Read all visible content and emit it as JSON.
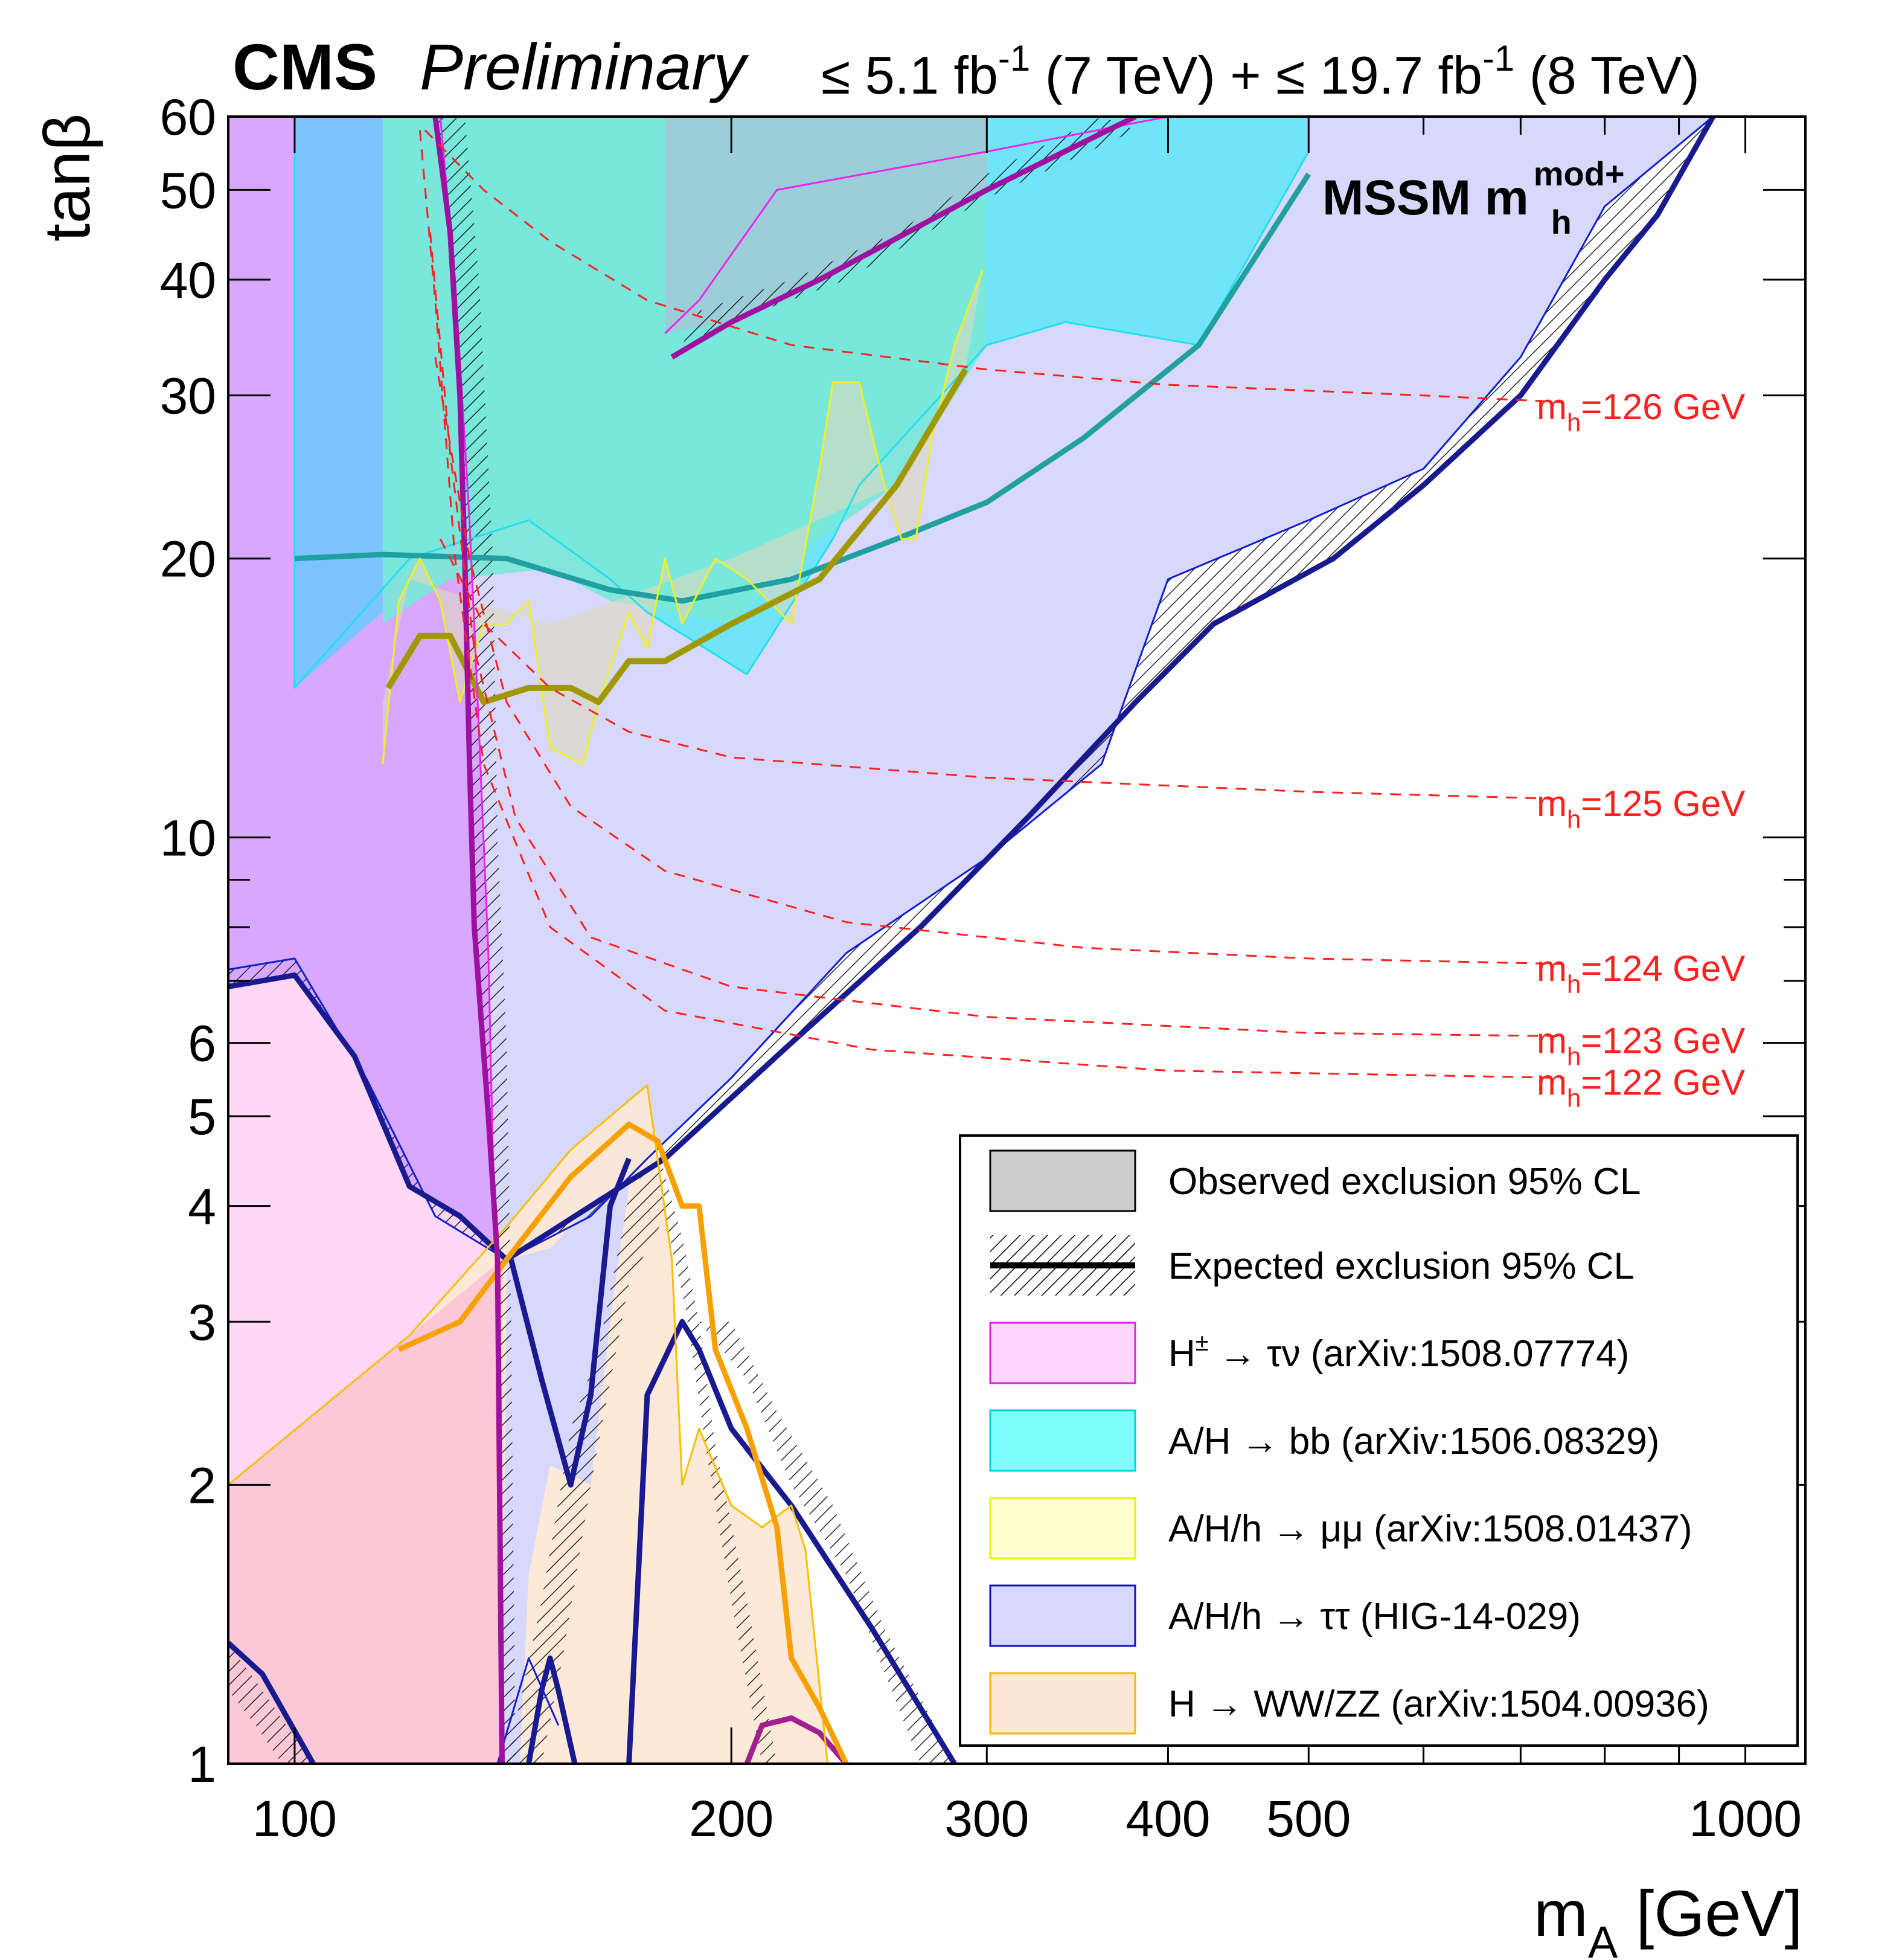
{
  "chart_data": {
    "type": "area",
    "header": {
      "cms": "CMS",
      "preliminary": "Preliminary",
      "lumi7_pre": "≤ 5.1 fb",
      "lumi7_exp": "-1",
      "lumi7_post": " (7 TeV) + ",
      "lumi8_pre": "≤ 19.7 fb",
      "lumi8_exp": "-1",
      "lumi8_post": " (8 TeV)"
    },
    "model_label": {
      "main": "MSSM m",
      "sup": "mod+",
      "sub": "h"
    },
    "xlabel": {
      "main": "m",
      "sub": "A",
      "rest": " [GeV]"
    },
    "ylabel": "tanβ",
    "xscale": "log",
    "yscale": "log",
    "xlim": [
      90,
      1100
    ],
    "ylim": [
      1,
      60
    ],
    "xtick_labels": [
      {
        "v": 100,
        "label": "100"
      },
      {
        "v": 200,
        "label": "200"
      },
      {
        "v": 300,
        "label": "300"
      },
      {
        "v": 400,
        "label": "400"
      },
      {
        "v": 500,
        "label": "500"
      },
      {
        "v": 1000,
        "label": "1000"
      }
    ],
    "ytick_labels": [
      {
        "v": 1,
        "label": "1"
      },
      {
        "v": 2,
        "label": "2"
      },
      {
        "v": 3,
        "label": "3"
      },
      {
        "v": 4,
        "label": "4"
      },
      {
        "v": 5,
        "label": "5"
      },
      {
        "v": 6,
        "label": "6"
      },
      {
        "v": 10,
        "label": "10"
      },
      {
        "v": 20,
        "label": "20"
      },
      {
        "v": 30,
        "label": "30"
      },
      {
        "v": 40,
        "label": "40"
      },
      {
        "v": 50,
        "label": "50"
      },
      {
        "v": 60,
        "label": "60"
      }
    ],
    "grid": false,
    "legend_position": "bottom-right",
    "legend": [
      {
        "key": "observed",
        "text": "Observed exclusion 95% CL",
        "fill": "#cccccc",
        "stroke": "#000000"
      },
      {
        "key": "expected",
        "text": "Expected exclusion 95% CL",
        "fill": "none",
        "stroke": "#000000"
      },
      {
        "key": "hpm",
        "pre": "H",
        "sup": "±",
        "post": " → τν (arXiv:1508.07774)",
        "fill": "#ffd6ff",
        "stroke": "#e020e0"
      },
      {
        "key": "bb",
        "text": "A/H → bb (arXiv:1506.08329)",
        "fill": "#80ffff",
        "stroke": "#00d0e0"
      },
      {
        "key": "mumu",
        "text": "A/H/h → μμ (arXiv:1508.01437)",
        "fill": "#ffffd0",
        "stroke": "#f0f000"
      },
      {
        "key": "tautau",
        "text": "A/H/h → ττ (HIG-14-029)",
        "fill": "#d8d8ff",
        "stroke": "#1010c0"
      },
      {
        "key": "wwzz",
        "text": "H → WW/ZZ (arXiv:1504.00936)",
        "fill": "#fde8d5",
        "stroke": "#f8b800"
      }
    ],
    "colors": {
      "hpm": "#d8a8ff",
      "hpm_line": "#ee22ee",
      "hpm_exp": "#a010a0",
      "bb": "#5ee8f8",
      "bb_line": "#20e0f0",
      "bb_exp": "#20a0a0",
      "mumu_line": "#f0f020",
      "mumu_exp": "#a09800",
      "tautau": "#d8d8fc",
      "tautau_line": "#1020d0",
      "tautau_exp": "#1a1a90",
      "wwzz": "#fde8d5",
      "wwzz_line": "#f8c000",
      "wwzz_exp": "#f8a000",
      "hlow": "#ffd6f8",
      "mh_lines": "#ff2020"
    },
    "mh_contours": [
      {
        "label": "=126 GeV",
        "mh": 126,
        "points": [
          [
            123,
            58
          ],
          [
            135,
            50
          ],
          [
            150,
            44
          ],
          [
            175,
            38
          ],
          [
            220,
            34
          ],
          [
            300,
            32
          ],
          [
            400,
            30.8
          ],
          [
            600,
            30
          ],
          [
            750,
            29.5
          ]
        ]
      },
      {
        "label": "=125 GeV",
        "mh": 125,
        "points": [
          [
            126,
            21
          ],
          [
            135,
            17
          ],
          [
            150,
            14.5
          ],
          [
            170,
            13
          ],
          [
            200,
            12.2
          ],
          [
            300,
            11.6
          ],
          [
            500,
            11.2
          ],
          [
            750,
            11
          ]
        ]
      },
      {
        "label": "=124 GeV",
        "mh": 124,
        "points": [
          [
            125,
            33
          ],
          [
            132,
            20
          ],
          [
            140,
            14
          ],
          [
            155,
            10.8
          ],
          [
            180,
            9.2
          ],
          [
            240,
            8.1
          ],
          [
            350,
            7.6
          ],
          [
            500,
            7.4
          ],
          [
            750,
            7.3
          ]
        ]
      },
      {
        "label": "=123 GeV",
        "mh": 123,
        "points": [
          [
            124,
            45
          ],
          [
            128,
            26
          ],
          [
            133,
            16
          ],
          [
            142,
            10.5
          ],
          [
            160,
            7.8
          ],
          [
            200,
            6.9
          ],
          [
            300,
            6.4
          ],
          [
            500,
            6.15
          ],
          [
            750,
            6.1
          ]
        ]
      },
      {
        "label": "=122 GeV",
        "mh": 122,
        "points": [
          [
            122,
            58
          ],
          [
            125,
            38
          ],
          [
            129,
            20
          ],
          [
            135,
            12
          ],
          [
            150,
            8
          ],
          [
            180,
            6.5
          ],
          [
            250,
            5.9
          ],
          [
            400,
            5.6
          ],
          [
            750,
            5.5
          ]
        ]
      }
    ],
    "series": [
      {
        "name": "H± → τν observed",
        "boundary": [
          [
            126,
            60
          ],
          [
            129,
            40
          ],
          [
            132,
            22
          ],
          [
            134,
            13
          ],
          [
            136,
            7.5
          ],
          [
            137,
            4.5
          ],
          [
            138,
            3
          ],
          [
            139,
            1
          ]
        ]
      },
      {
        "name": "H± → τν expected",
        "boundary": [
          [
            125,
            60
          ],
          [
            128,
            45
          ],
          [
            130,
            30
          ],
          [
            131,
            20
          ],
          [
            132,
            12
          ],
          [
            133,
            8
          ],
          [
            136,
            5
          ],
          [
            138,
            3.5
          ],
          [
            139,
            1
          ]
        ]
      },
      {
        "name": "A/H → bb observed",
        "boundary": [
          [
            100,
            60
          ],
          [
            100,
            14.5
          ],
          [
            120,
            20
          ],
          [
            145,
            22
          ],
          [
            165,
            19
          ],
          [
            175,
            17.5
          ],
          [
            205,
            15
          ],
          [
            235,
            21
          ],
          [
            245,
            24
          ],
          [
            300,
            34
          ],
          [
            340,
            36
          ],
          [
            420,
            34
          ],
          [
            500,
            55
          ],
          [
            500,
            60
          ]
        ]
      },
      {
        "name": "A/H → bb expected",
        "boundary": [
          [
            100,
            20
          ],
          [
            115,
            20.2
          ],
          [
            140,
            20
          ],
          [
            165,
            18.5
          ],
          [
            185,
            18
          ],
          [
            220,
            19
          ],
          [
            260,
            21
          ],
          [
            300,
            23
          ],
          [
            350,
            27
          ],
          [
            420,
            34
          ],
          [
            500,
            52
          ]
        ]
      },
      {
        "name": "A/H/h → μμ observed",
        "boundary": [
          [
            115,
            12
          ],
          [
            118,
            18
          ],
          [
            122,
            20
          ],
          [
            126,
            18
          ],
          [
            130,
            14
          ],
          [
            135,
            17
          ],
          [
            140,
            17
          ],
          [
            145,
            18
          ],
          [
            150,
            12.5
          ],
          [
            158,
            12
          ],
          [
            162,
            14
          ],
          [
            170,
            17.5
          ],
          [
            175,
            16
          ],
          [
            180,
            20
          ],
          [
            185,
            17
          ],
          [
            195,
            20
          ],
          [
            205,
            19
          ],
          [
            220,
            17
          ],
          [
            230,
            25
          ],
          [
            235,
            31
          ],
          [
            245,
            31
          ],
          [
            255,
            24
          ],
          [
            262,
            21
          ],
          [
            268,
            21
          ],
          [
            275,
            27
          ],
          [
            285,
            34
          ],
          [
            298,
            41
          ]
        ]
      },
      {
        "name": "A/H/h → μμ expected",
        "boundary": [
          [
            116,
            14.5
          ],
          [
            122,
            16.5
          ],
          [
            128,
            16.5
          ],
          [
            135,
            14
          ],
          [
            145,
            14.5
          ],
          [
            155,
            14.5
          ],
          [
            162,
            14
          ],
          [
            170,
            15.5
          ],
          [
            180,
            15.5
          ],
          [
            200,
            17
          ],
          [
            230,
            19
          ],
          [
            260,
            24
          ],
          [
            290,
            32
          ]
        ]
      },
      {
        "name": "A/H/h → ττ observed",
        "boundary": [
          [
            90,
            7.2
          ],
          [
            100,
            7.4
          ],
          [
            112,
            5.5
          ],
          [
            125,
            3.9
          ],
          [
            140,
            3.5
          ],
          [
            160,
            3.9
          ],
          [
            175,
            4.5
          ],
          [
            200,
            5.5
          ],
          [
            240,
            7.5
          ],
          [
            300,
            9.5
          ],
          [
            360,
            12
          ],
          [
            400,
            19
          ],
          [
            500,
            22
          ],
          [
            600,
            25
          ],
          [
            700,
            33
          ],
          [
            800,
            48
          ],
          [
            950,
            60
          ]
        ]
      },
      {
        "name": "A/H/h → ττ expected",
        "boundary": [
          [
            90,
            6.9
          ],
          [
            100,
            7.1
          ],
          [
            110,
            5.8
          ],
          [
            120,
            4.2
          ],
          [
            130,
            3.9
          ],
          [
            140,
            3.5
          ],
          [
            160,
            4
          ],
          [
            180,
            4.5
          ],
          [
            220,
            6
          ],
          [
            270,
            8
          ],
          [
            320,
            10.5
          ],
          [
            380,
            14
          ],
          [
            430,
            17
          ],
          [
            520,
            20
          ],
          [
            600,
            24
          ],
          [
            700,
            30
          ],
          [
            800,
            40
          ],
          [
            870,
            47
          ],
          [
            950,
            60
          ]
        ]
      },
      {
        "name": "H → WW/ZZ observed",
        "boundary": [
          [
            90,
            2
          ],
          [
            120,
            2.9
          ],
          [
            140,
            3.8
          ],
          [
            155,
            4.6
          ],
          [
            170,
            5.2
          ],
          [
            175,
            5.4
          ],
          [
            182,
            3.5
          ],
          [
            185,
            2
          ],
          [
            190,
            2.3
          ],
          [
            200,
            1.9
          ],
          [
            210,
            1.8
          ],
          [
            220,
            1.9
          ],
          [
            225,
            1.7
          ],
          [
            233,
            1
          ]
        ]
      },
      {
        "name": "H → WW/ZZ expected",
        "boundary": [
          [
            118,
            2.8
          ],
          [
            130,
            3
          ],
          [
            140,
            3.5
          ],
          [
            155,
            4.3
          ],
          [
            170,
            4.9
          ],
          [
            178,
            4.7
          ],
          [
            185,
            4
          ],
          [
            190,
            4
          ],
          [
            195,
            2.8
          ],
          [
            205,
            2.3
          ],
          [
            215,
            1.8
          ],
          [
            220,
            1.3
          ],
          [
            230,
            1.15
          ],
          [
            240,
            1
          ]
        ]
      }
    ],
    "labels": [
      {
        "pos": "right",
        "mh": 126,
        "main": "m",
        "sub": "h",
        "rest": "=126 GeV"
      },
      {
        "pos": "right",
        "mh": 125,
        "main": "m",
        "sub": "h",
        "rest": "=125 GeV"
      },
      {
        "pos": "right",
        "mh": 124,
        "main": "m",
        "sub": "h",
        "rest": "=124 GeV"
      },
      {
        "pos": "right",
        "mh": 123,
        "main": "m",
        "sub": "h",
        "rest": "=123 GeV"
      },
      {
        "pos": "right",
        "mh": 122,
        "main": "m",
        "sub": "h",
        "rest": "=122 GeV"
      }
    ]
  }
}
